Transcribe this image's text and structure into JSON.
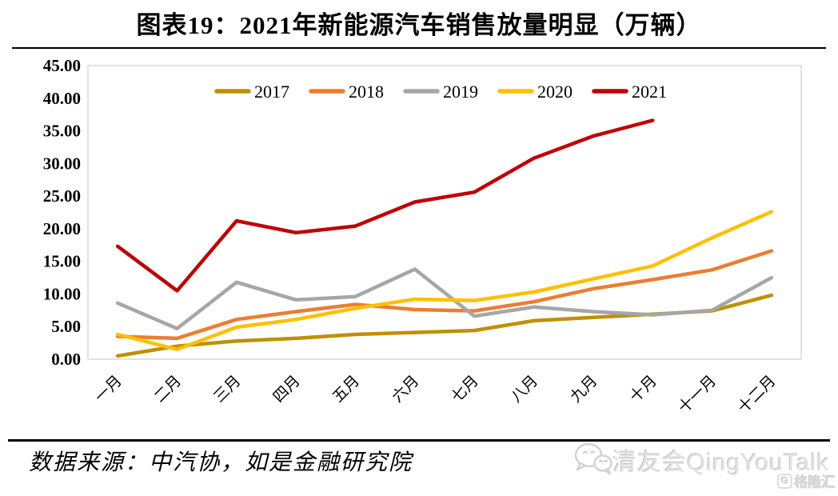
{
  "title": "图表19：2021年新能源汽车销售放量明显（万辆）",
  "source": "数据来源：中汽协，如是金融研究院",
  "watermark": {
    "name": "清友会QingYouTalk",
    "logo_text": "格隆汇",
    "color": "#dcdcdc"
  },
  "chart_data": {
    "type": "line",
    "title": "图表19：2021年新能源汽车销售放量明显（万辆）",
    "unit": "万辆",
    "categories": [
      "一月",
      "二月",
      "三月",
      "四月",
      "五月",
      "六月",
      "七月",
      "八月",
      "九月",
      "十月",
      "十一月",
      "十二月"
    ],
    "series": [
      {
        "name": "2017",
        "color": "#BF9000",
        "values": [
          0.5,
          2.0,
          2.8,
          3.2,
          3.8,
          4.1,
          4.4,
          5.9,
          6.4,
          6.9,
          7.4,
          9.8
        ]
      },
      {
        "name": "2018",
        "color": "#ED7D31",
        "values": [
          3.5,
          3.2,
          6.1,
          7.3,
          8.4,
          7.6,
          7.4,
          8.8,
          10.8,
          12.2,
          13.7,
          16.6
        ]
      },
      {
        "name": "2019",
        "color": "#A6A6A6",
        "values": [
          8.6,
          4.7,
          11.8,
          9.1,
          9.6,
          13.8,
          6.6,
          8.0,
          7.3,
          6.8,
          7.5,
          12.5
        ]
      },
      {
        "name": "2020",
        "color": "#FFC000",
        "values": [
          3.8,
          1.5,
          4.9,
          6.1,
          7.8,
          9.2,
          9.0,
          10.3,
          12.3,
          14.3,
          18.6,
          22.6
        ]
      },
      {
        "name": "2021",
        "color": "#C00000",
        "values": [
          17.3,
          10.5,
          21.2,
          19.4,
          20.4,
          24.1,
          25.6,
          30.8,
          34.2,
          36.6,
          null,
          null
        ]
      }
    ],
    "ylim": [
      0,
      45
    ],
    "y_tick_step": 5,
    "y_tick_labels": [
      "45.00",
      "40.00",
      "35.00",
      "30.00",
      "25.00",
      "20.00",
      "15.00",
      "10.00",
      "5.00",
      "0.00"
    ],
    "xlabel": "",
    "ylabel": "",
    "legend_position": "top",
    "grid": false
  }
}
